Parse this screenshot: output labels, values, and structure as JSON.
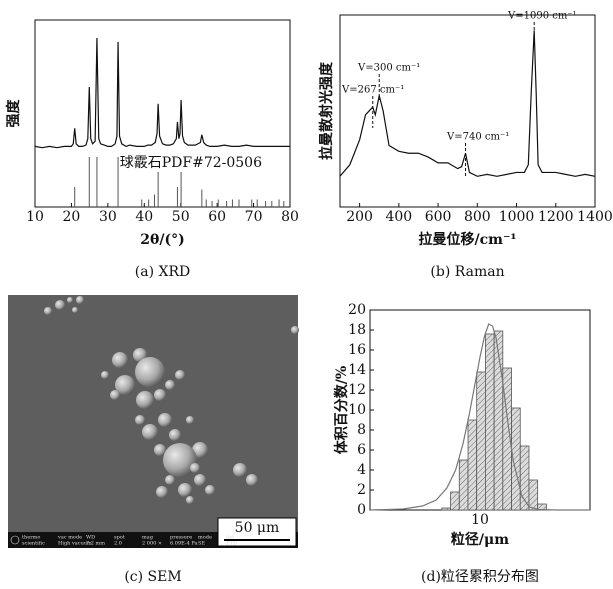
{
  "chart_data": [
    {
      "type": "line",
      "caption": "(a) XRD",
      "xlabel": "2θ/(°)",
      "ylabel": "强度",
      "x": [
        10,
        12,
        14,
        16,
        18,
        20,
        20.5,
        20.9,
        21.3,
        22,
        23,
        24,
        24.5,
        24.9,
        25.3,
        25.8,
        26.5,
        27,
        27.5,
        28,
        29,
        30,
        31,
        32,
        32.5,
        32.8,
        33.2,
        33.8,
        35,
        36,
        38,
        39,
        40,
        41,
        42,
        43,
        43.5,
        43.8,
        44.2,
        45,
        46,
        47,
        48,
        48.8,
        49.1,
        49.5,
        49.8,
        50.1,
        50.5,
        51,
        52,
        53,
        54,
        55.4,
        55.8,
        56.3,
        57,
        58,
        60,
        62,
        64,
        66,
        68,
        70,
        72,
        74,
        76,
        78,
        80
      ],
      "values": [
        2,
        1,
        2,
        1,
        2,
        2,
        4,
        16,
        4,
        2,
        2,
        3,
        8,
        48,
        8,
        4,
        6,
        86,
        8,
        4,
        3,
        2,
        2,
        4,
        10,
        83,
        10,
        4,
        2,
        3,
        2,
        2,
        2,
        3,
        3,
        5,
        12,
        35,
        10,
        4,
        3,
        3,
        4,
        8,
        21,
        8,
        12,
        38,
        10,
        5,
        3,
        3,
        3,
        5,
        11,
        5,
        3,
        2,
        2,
        3,
        2,
        2,
        3,
        2,
        2,
        2,
        2,
        2,
        2
      ],
      "color": "#111",
      "xlim": [
        10,
        80
      ],
      "ylim": [
        -45,
        100
      ],
      "xticks": [
        10,
        20,
        30,
        40,
        50,
        60,
        70,
        80
      ],
      "reference": {
        "label": "球霰石PDF#72-0506",
        "color": "#555",
        "x": [
          20.9,
          24.9,
          27,
          32.8,
          39.3,
          41.2,
          42.8,
          43.8,
          49.1,
          50.1,
          55.8,
          57,
          58.6,
          60.3,
          62.6,
          64.2,
          66,
          69.5,
          71,
          73.3,
          75,
          77,
          78.3
        ],
        "values": [
          40,
          100,
          100,
          100,
          15,
          15,
          25,
          70,
          40,
          70,
          35,
          15,
          12,
          15,
          12,
          15,
          15,
          15,
          15,
          12,
          12,
          15,
          12
        ],
        "ylim": [
          0,
          100
        ]
      }
    },
    {
      "type": "line",
      "caption": "(b) Raman",
      "xlabel": "拉曼位移/cm⁻¹",
      "ylabel": "拉曼散射光强度",
      "x": [
        100,
        150,
        200,
        230,
        267,
        280,
        300,
        320,
        350,
        400,
        450,
        500,
        550,
        600,
        650,
        700,
        720,
        740,
        760,
        800,
        850,
        900,
        950,
        1000,
        1040,
        1060,
        1075,
        1090,
        1100,
        1110,
        1130,
        1200,
        1250,
        1300,
        1350,
        1400
      ],
      "values": [
        16,
        22,
        35,
        48,
        52,
        48,
        58,
        50,
        32,
        29,
        28,
        28,
        26,
        23,
        23,
        20,
        21,
        28,
        18,
        16,
        17,
        16,
        17,
        18,
        18,
        22,
        60,
        92,
        60,
        22,
        18,
        18,
        17,
        16,
        17,
        16
      ],
      "color": "#111",
      "xlim": [
        100,
        1400
      ],
      "ylim": [
        0,
        100
      ],
      "xticks": [
        200,
        400,
        600,
        800,
        1000,
        1200,
        1400
      ],
      "annotations": [
        {
          "text": "V=267 cm⁻¹",
          "x": 267
        },
        {
          "text": "V=300 cm⁻¹",
          "x": 300
        },
        {
          "text": "V=740 cm⁻¹",
          "x": 740
        },
        {
          "text": "V=1090 cm⁻¹",
          "x": 1090
        }
      ]
    },
    {
      "type": "histogram",
      "caption": "(d)粒径累积分布图",
      "xlabel": "粒径/μm",
      "ylabel": "体积百分数/%",
      "bins": [
        4.5,
        5.4,
        6.48,
        7.78,
        9.33,
        11.2,
        13.44,
        16.12,
        19.35,
        23.22,
        27.87,
        33.44,
        40.13
      ],
      "values": [
        0.2,
        1.8,
        5,
        9,
        13.8,
        17.6,
        17.9,
        14.2,
        10.2,
        6.4,
        3,
        0.6
      ],
      "color": "#dcdcdc",
      "hatch": true,
      "xscale": "log",
      "xlim": [
        1,
        100
      ],
      "xticks": [
        10
      ],
      "ylim": [
        0,
        20
      ],
      "yticks": [
        0,
        2,
        4,
        6,
        8,
        10,
        12,
        14,
        16,
        18,
        20
      ],
      "fit": {
        "color": "#777",
        "x": [
          1,
          2,
          3,
          4,
          5,
          6,
          7,
          8,
          9,
          10,
          11,
          12,
          13,
          14,
          16,
          18,
          20,
          24,
          28,
          34,
          50,
          100
        ],
        "values": [
          0,
          0.1,
          0.4,
          1,
          2.2,
          4,
          6.6,
          9.6,
          12.6,
          15.3,
          17.4,
          18.6,
          18.4,
          17.2,
          13,
          8.6,
          5,
          1.4,
          0.3,
          0.05,
          0,
          0
        ]
      }
    }
  ],
  "sem": {
    "caption": "(c) SEM",
    "scale_bar": "50 μm",
    "brand": [
      "thermo",
      "scientific"
    ],
    "info": [
      [
        "vac mode",
        "High vacuum"
      ],
      [
        "WD",
        "7.2 mm"
      ],
      [
        "spot",
        "2.0"
      ],
      [
        "mag",
        "2 000 ×"
      ],
      [
        "pressure",
        "6.09E-4 Pa"
      ],
      [
        "mode",
        "SE"
      ],
      [
        "det",
        "ETD"
      ]
    ]
  }
}
